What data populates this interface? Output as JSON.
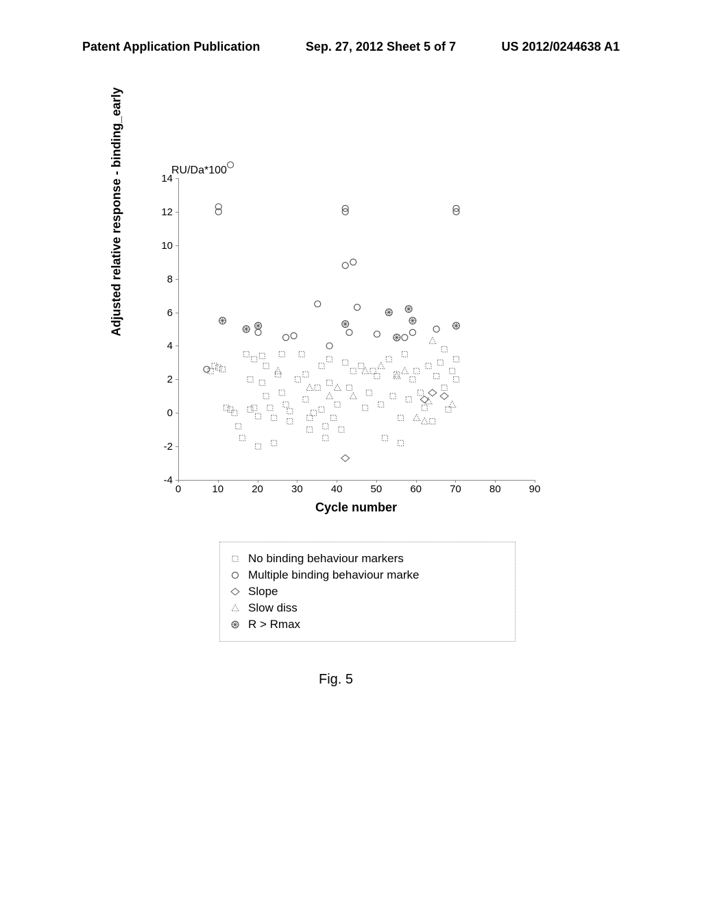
{
  "header": {
    "left": "Patent Application Publication",
    "center": "Sep. 27, 2012  Sheet 5 of 7",
    "right": "US 2012/0244638 A1"
  },
  "chart": {
    "type": "scatter",
    "y_axis_label": "Adjusted relative response - binding_early",
    "y_unit": "RU/Da*100",
    "x_axis_label": "Cycle number",
    "xlim": [
      0,
      90
    ],
    "ylim": [
      -4,
      14
    ],
    "y_ticks": [
      -4,
      -2,
      0,
      2,
      4,
      6,
      8,
      10,
      12,
      14
    ],
    "x_ticks": [
      0,
      10,
      20,
      30,
      40,
      50,
      60,
      70,
      80,
      90
    ],
    "series": {
      "no_binding": {
        "label": "No binding behaviour markers",
        "marker": "square-dotted",
        "color": "#666666",
        "points": [
          [
            8,
            2.5
          ],
          [
            9,
            2.8
          ],
          [
            10,
            2.7
          ],
          [
            11,
            2.6
          ],
          [
            12,
            0.3
          ],
          [
            13,
            0.2
          ],
          [
            14,
            0
          ],
          [
            15,
            -0.8
          ],
          [
            16,
            -1.5
          ],
          [
            17,
            3.5
          ],
          [
            18,
            2
          ],
          [
            19,
            3.2
          ],
          [
            18,
            0.2
          ],
          [
            19,
            0.3
          ],
          [
            20,
            -0.2
          ],
          [
            20,
            -2
          ],
          [
            21,
            3.4
          ],
          [
            21,
            1.8
          ],
          [
            22,
            2.8
          ],
          [
            22,
            1
          ],
          [
            23,
            0.3
          ],
          [
            24,
            -0.3
          ],
          [
            24,
            -1.8
          ],
          [
            25,
            2.3
          ],
          [
            26,
            3.5
          ],
          [
            26,
            1.2
          ],
          [
            27,
            0.5
          ],
          [
            28,
            -0.5
          ],
          [
            28,
            0.1
          ],
          [
            30,
            2
          ],
          [
            31,
            3.5
          ],
          [
            32,
            2.3
          ],
          [
            32,
            0.8
          ],
          [
            33,
            -0.3
          ],
          [
            33,
            -1
          ],
          [
            34,
            0
          ],
          [
            35,
            1.5
          ],
          [
            36,
            2.8
          ],
          [
            36,
            0.2
          ],
          [
            37,
            -0.8
          ],
          [
            37,
            -1.5
          ],
          [
            38,
            3.2
          ],
          [
            38,
            1.8
          ],
          [
            39,
            -0.3
          ],
          [
            40,
            0.5
          ],
          [
            41,
            -1
          ],
          [
            42,
            3
          ],
          [
            43,
            1.5
          ],
          [
            44,
            2.5
          ],
          [
            46,
            2.8
          ],
          [
            47,
            0.3
          ],
          [
            48,
            1.2
          ],
          [
            49,
            2.5
          ],
          [
            50,
            2.2
          ],
          [
            51,
            0.5
          ],
          [
            52,
            -1.5
          ],
          [
            53,
            3.2
          ],
          [
            54,
            1
          ],
          [
            55,
            2.3
          ],
          [
            56,
            -0.3
          ],
          [
            56,
            -1.8
          ],
          [
            57,
            3.5
          ],
          [
            58,
            0.8
          ],
          [
            59,
            2
          ],
          [
            60,
            2.5
          ],
          [
            61,
            1.2
          ],
          [
            62,
            0.3
          ],
          [
            63,
            2.8
          ],
          [
            64,
            -0.5
          ],
          [
            65,
            2.2
          ],
          [
            66,
            3
          ],
          [
            67,
            1.5
          ],
          [
            67,
            3.8
          ],
          [
            68,
            0.2
          ],
          [
            69,
            2.5
          ],
          [
            70,
            2
          ],
          [
            70,
            3.2
          ]
        ]
      },
      "multiple_binding": {
        "label": "Multiple binding behaviour marke",
        "marker": "circle-open",
        "color": "#555555",
        "points": [
          [
            7,
            2.6
          ],
          [
            13,
            14.8
          ],
          [
            10,
            12.3
          ],
          [
            10,
            12
          ],
          [
            20,
            4.8
          ],
          [
            27,
            4.5
          ],
          [
            29,
            4.6
          ],
          [
            35,
            6.5
          ],
          [
            38,
            4
          ],
          [
            42,
            12.2
          ],
          [
            42,
            12
          ],
          [
            43,
            4.8
          ],
          [
            42,
            8.8
          ],
          [
            44,
            9
          ],
          [
            45,
            6.3
          ],
          [
            50,
            4.7
          ],
          [
            57,
            4.5
          ],
          [
            59,
            4.8
          ],
          [
            65,
            5
          ],
          [
            70,
            12.2
          ],
          [
            70,
            12
          ]
        ]
      },
      "slope": {
        "label": "Slope",
        "marker": "diamond-open",
        "color": "#555555",
        "points": [
          [
            42,
            -2.7
          ],
          [
            62,
            0.8
          ],
          [
            64,
            1.2
          ],
          [
            67,
            1
          ]
        ]
      },
      "slow_diss": {
        "label": "Slow diss",
        "marker": "triangle-dotted",
        "color": "#666666",
        "points": [
          [
            25,
            2.5
          ],
          [
            33,
            1.5
          ],
          [
            38,
            1
          ],
          [
            40,
            1.5
          ],
          [
            44,
            1
          ],
          [
            47,
            2.5
          ],
          [
            51,
            2.8
          ],
          [
            55,
            2.2
          ],
          [
            57,
            2.5
          ],
          [
            60,
            -0.3
          ],
          [
            62,
            -0.5
          ],
          [
            63,
            0.7
          ],
          [
            64,
            4.3
          ],
          [
            69,
            0.5
          ]
        ]
      },
      "r_rmax": {
        "label": "R > Rmax",
        "marker": "circle-hatched",
        "color": "#444444",
        "points": [
          [
            11,
            5.5
          ],
          [
            17,
            5
          ],
          [
            20,
            5.2
          ],
          [
            42,
            5.3
          ],
          [
            53,
            6
          ],
          [
            58,
            6.2
          ],
          [
            59,
            5.5
          ],
          [
            55,
            4.5
          ],
          [
            70,
            5.2
          ]
        ]
      }
    }
  },
  "figure_label": "Fig. 5"
}
